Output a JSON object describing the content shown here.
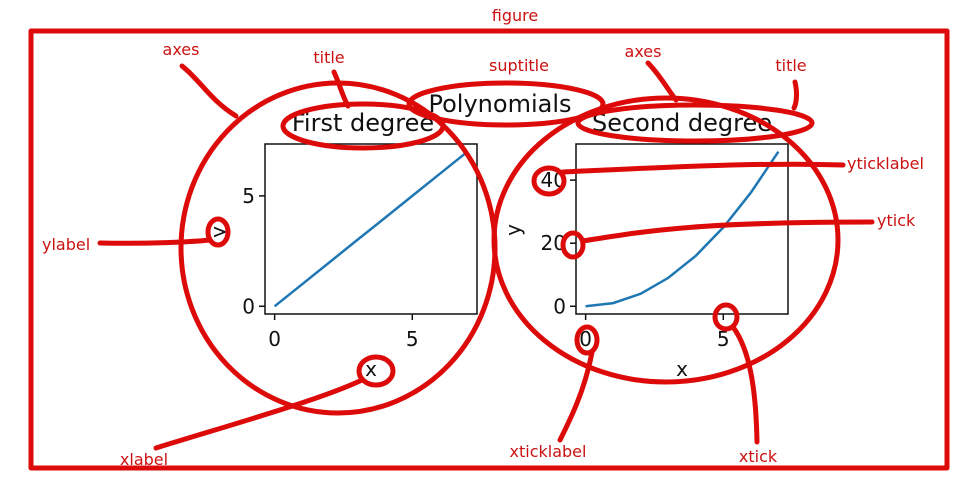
{
  "annotations": {
    "figure": "figure",
    "axes_left": "axes",
    "axes_right": "axes",
    "title_left": "title",
    "title_right": "title",
    "suptitle": "suptitle",
    "ylabel": "ylabel",
    "xlabel": "xlabel",
    "yticklabel": "yticklabel",
    "ytick": "ytick",
    "xticklabel": "xticklabel",
    "xtick": "xtick"
  },
  "colors": {
    "annotation": "#dd0a0a",
    "line": "#1f77b4"
  },
  "chart_data": {
    "suptitle": "Polynomials",
    "charts": [
      {
        "type": "line",
        "title": "First degree",
        "xlabel": "x",
        "ylabel": "y",
        "x": [
          0,
          1,
          2,
          3,
          4,
          5,
          6,
          7
        ],
        "y": [
          0,
          1,
          2,
          3,
          4,
          5,
          6,
          7
        ],
        "xlim": [
          -0.35,
          7.35
        ],
        "ylim": [
          -0.35,
          7.35
        ],
        "xticks": [
          "0",
          "5"
        ],
        "yticks": [
          "0",
          "5"
        ],
        "grid": false
      },
      {
        "type": "line",
        "title": "Second degree",
        "xlabel": "x",
        "ylabel": "y",
        "x": [
          0,
          1,
          2,
          3,
          4,
          5,
          6,
          7
        ],
        "y": [
          0,
          1,
          4,
          9,
          16,
          25,
          36,
          49
        ],
        "xlim": [
          -0.35,
          7.35
        ],
        "ylim": [
          -2.45,
          51.45
        ],
        "xticks": [
          "0",
          "5"
        ],
        "yticks": [
          "0",
          "20",
          "40"
        ],
        "grid": false
      }
    ]
  }
}
